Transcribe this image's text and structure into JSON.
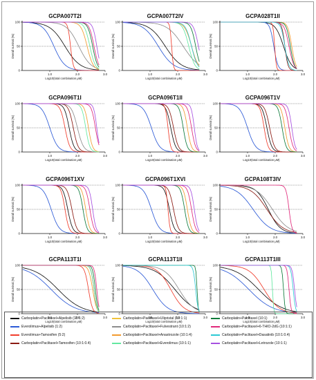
{
  "chart_data": {
    "type": "line",
    "xlabel": "Log10(total combination μM)",
    "ylabel": "Overall survival (%)",
    "xlim": [
      0,
      3
    ],
    "ylim": [
      0,
      100
    ],
    "x_ticks": [
      "1.0",
      "2.0",
      "3.0"
    ],
    "y_ticks": [
      "0",
      "50",
      "100"
    ],
    "reference_lines": [
      100,
      50
    ],
    "legend": {
      "placement": "bottom",
      "entries": [
        {
          "name": "Carboplatin+Paclitaxel+Alpelisib (10:1:2)",
          "color": "#111111"
        },
        {
          "name": "Everolimus+Alpelisib (1:2)",
          "color": "#2b59d6"
        },
        {
          "name": "Everolimus+Tamoxifen (5:2)",
          "color": "#f03c2b"
        },
        {
          "name": "Carboplatin+Paclitaxel+Tamoxifen (10:1:0.4)",
          "color": "#8b1a12"
        },
        {
          "name": "Carboplatin+Paclitaxel+Ulipristal (10:1:1)",
          "color": "#f0c23a"
        },
        {
          "name": "Carboplatin+Paclitaxel+Fulvestrant (10:1:2)",
          "color": "#8c8c8c"
        },
        {
          "name": "Carboplatin+Paclitaxel+Anastrozole (10:1:4)",
          "color": "#f29a2e"
        },
        {
          "name": "Carboplatin+Paclitaxel+Everolimus (10:1:1)",
          "color": "#62e8a0"
        },
        {
          "name": "Carboplatin+Paclitaxel (10:1)",
          "color": "#0c7a3a"
        },
        {
          "name": "Carboplatin+Paclitaxel+6-THIO-2dG (10:1:1)",
          "color": "#e0287a"
        },
        {
          "name": "Carboplatin+Paclitaxel+Dasatinib (10:1:0.4)",
          "color": "#2bc9d4"
        },
        {
          "name": "Carboplatin+Paclitaxel+Letrozole (10:1:1)",
          "color": "#a64fe0"
        }
      ]
    },
    "panels": [
      {
        "title": "GCPA007T2I",
        "series": [
          {
            "k": 0,
            "ic50": 1.55,
            "slope": 1.6
          },
          {
            "k": 1,
            "ic50": 1.15,
            "slope": 2.2
          },
          {
            "k": 2,
            "ic50": 1.75,
            "slope": 9.0
          },
          {
            "k": 5,
            "ic50": 2.05,
            "slope": 2.0
          },
          {
            "k": 6,
            "ic50": 2.35,
            "slope": 4.0
          },
          {
            "k": 7,
            "ic50": 2.45,
            "slope": 4.5
          },
          {
            "k": 8,
            "ic50": 2.55,
            "slope": 5.0
          },
          {
            "k": 9,
            "ic50": 2.6,
            "slope": 5.0
          },
          {
            "k": 11,
            "ic50": 2.7,
            "slope": 6.0
          }
        ]
      },
      {
        "title": "GCPA007T2IV",
        "series": [
          {
            "k": 0,
            "ic50": 1.55,
            "slope": 1.5
          },
          {
            "k": 1,
            "ic50": 1.3,
            "slope": 1.6
          },
          {
            "k": 2,
            "ic50": 1.78,
            "slope": 14.0
          },
          {
            "k": 5,
            "ic50": 2.2,
            "slope": 1.5
          },
          {
            "k": 6,
            "ic50": 2.5,
            "slope": 3.5
          },
          {
            "k": 7,
            "ic50": 2.4,
            "slope": 4.0
          },
          {
            "k": 8,
            "ic50": 2.65,
            "slope": 5.0
          },
          {
            "k": 10,
            "ic50": 2.5,
            "slope": 4.0
          },
          {
            "k": 11,
            "ic50": 2.75,
            "slope": 5.0
          }
        ]
      },
      {
        "title": "GCPA028T1II",
        "series": [
          {
            "k": 0,
            "ic50": 2.3,
            "slope": 3.0
          },
          {
            "k": 1,
            "ic50": 1.95,
            "slope": 6.0
          },
          {
            "k": 2,
            "ic50": 1.98,
            "slope": 15.0
          },
          {
            "k": 3,
            "ic50": 2.35,
            "slope": 8.0
          },
          {
            "k": 6,
            "ic50": 2.6,
            "slope": 6.0
          },
          {
            "k": 8,
            "ic50": 2.55,
            "slope": 6.0
          },
          {
            "k": 9,
            "ic50": 2.5,
            "slope": 5.0
          },
          {
            "k": 10,
            "ic50": 2.35,
            "slope": 6.0
          }
        ]
      },
      {
        "title": "GCPA096T1I",
        "series": [
          {
            "k": 0,
            "ic50": 1.7,
            "slope": 5.0
          },
          {
            "k": 1,
            "ic50": 1.0,
            "slope": 3.0
          },
          {
            "k": 2,
            "ic50": 1.55,
            "slope": 5.0
          },
          {
            "k": 3,
            "ic50": 1.85,
            "slope": 5.0
          },
          {
            "k": 5,
            "ic50": 2.0,
            "slope": 4.0
          },
          {
            "k": 6,
            "ic50": 2.4,
            "slope": 6.0
          },
          {
            "k": 7,
            "ic50": 2.3,
            "slope": 6.0
          },
          {
            "k": 9,
            "ic50": 2.65,
            "slope": 6.0
          },
          {
            "k": 11,
            "ic50": 2.7,
            "slope": 8.0
          }
        ]
      },
      {
        "title": "GCPA096T1II",
        "series": [
          {
            "k": 0,
            "ic50": 1.75,
            "slope": 5.0
          },
          {
            "k": 1,
            "ic50": 1.05,
            "slope": 3.0
          },
          {
            "k": 2,
            "ic50": 1.65,
            "slope": 9.0
          },
          {
            "k": 3,
            "ic50": 1.85,
            "slope": 5.0
          },
          {
            "k": 6,
            "ic50": 2.35,
            "slope": 6.0
          },
          {
            "k": 8,
            "ic50": 2.2,
            "slope": 6.0
          },
          {
            "k": 9,
            "ic50": 2.5,
            "slope": 6.0
          },
          {
            "k": 11,
            "ic50": 2.6,
            "slope": 8.0
          }
        ]
      },
      {
        "title": "GCPA096T1V",
        "series": [
          {
            "k": 0,
            "ic50": 1.7,
            "slope": 5.0
          },
          {
            "k": 1,
            "ic50": 1.0,
            "slope": 3.0
          },
          {
            "k": 2,
            "ic50": 1.6,
            "slope": 6.0
          },
          {
            "k": 3,
            "ic50": 1.8,
            "slope": 5.0
          },
          {
            "k": 6,
            "ic50": 2.35,
            "slope": 6.0
          },
          {
            "k": 8,
            "ic50": 2.25,
            "slope": 6.0
          },
          {
            "k": 9,
            "ic50": 2.5,
            "slope": 6.0
          },
          {
            "k": 11,
            "ic50": 2.6,
            "slope": 7.0
          }
        ]
      },
      {
        "title": "GCPA096T1XV",
        "series": [
          {
            "k": 0,
            "ic50": 1.65,
            "slope": 5.0
          },
          {
            "k": 1,
            "ic50": 1.05,
            "slope": 3.0
          },
          {
            "k": 2,
            "ic50": 1.55,
            "slope": 6.0
          },
          {
            "k": 3,
            "ic50": 1.8,
            "slope": 5.0
          },
          {
            "k": 6,
            "ic50": 2.3,
            "slope": 6.0
          },
          {
            "k": 8,
            "ic50": 2.2,
            "slope": 6.0
          },
          {
            "k": 9,
            "ic50": 2.45,
            "slope": 6.0
          },
          {
            "k": 11,
            "ic50": 2.55,
            "slope": 7.0
          }
        ]
      },
      {
        "title": "GCPA096T1XVI",
        "series": [
          {
            "k": 0,
            "ic50": 1.7,
            "slope": 5.0
          },
          {
            "k": 1,
            "ic50": 1.05,
            "slope": 3.0
          },
          {
            "k": 2,
            "ic50": 1.65,
            "slope": 12.0
          },
          {
            "k": 3,
            "ic50": 1.85,
            "slope": 5.0
          },
          {
            "k": 6,
            "ic50": 2.35,
            "slope": 6.0
          },
          {
            "k": 8,
            "ic50": 2.25,
            "slope": 6.0
          },
          {
            "k": 9,
            "ic50": 2.5,
            "slope": 6.0
          },
          {
            "k": 11,
            "ic50": 2.6,
            "slope": 7.0
          }
        ]
      },
      {
        "title": "GCPA108T3IV",
        "series": [
          {
            "k": 0,
            "ic50": 1.75,
            "slope": 2.0
          },
          {
            "k": 1,
            "ic50": 1.2,
            "slope": 1.4
          },
          {
            "k": 3,
            "ic50": 1.7,
            "slope": 1.5
          },
          {
            "k": 5,
            "ic50": 1.9,
            "slope": 1.5
          },
          {
            "k": 9,
            "ic50": 2.5,
            "slope": 8.0
          }
        ]
      },
      {
        "title": "GCPA113T1I",
        "series": [
          {
            "k": 0,
            "ic50": 1.3,
            "slope": 1.0
          },
          {
            "k": 1,
            "ic50": 1.05,
            "slope": 1.0
          },
          {
            "k": 2,
            "ic50": 2.4,
            "slope": 6.0
          },
          {
            "k": 3,
            "ic50": 2.6,
            "slope": 8.0
          },
          {
            "k": 6,
            "ic50": 2.55,
            "slope": 6.0
          },
          {
            "k": 7,
            "ic50": 2.6,
            "slope": 8.0
          },
          {
            "k": 8,
            "ic50": 2.65,
            "slope": 9.0
          },
          {
            "k": 9,
            "ic50": 2.7,
            "slope": 10.0
          }
        ]
      },
      {
        "title": "GCPA113T1II",
        "series": [
          {
            "k": 0,
            "ic50": 1.9,
            "slope": 1.2
          },
          {
            "k": 1,
            "ic50": 1.1,
            "slope": 1.6
          },
          {
            "k": 2,
            "ic50": 1.75,
            "slope": 1.8
          },
          {
            "k": 5,
            "ic50": 2.05,
            "slope": 1.6
          },
          {
            "k": 8,
            "ic50": 2.7,
            "slope": 20.0
          },
          {
            "k": 10,
            "ic50": 2.65,
            "slope": 10.0
          }
        ]
      },
      {
        "title": "GCPA113T1III",
        "series": [
          {
            "k": 0,
            "ic50": 1.4,
            "slope": 1.0
          },
          {
            "k": 1,
            "ic50": 1.05,
            "slope": 1.0
          },
          {
            "k": 2,
            "ic50": 1.6,
            "slope": 1.6
          },
          {
            "k": 7,
            "ic50": 1.9,
            "slope": 20.0
          },
          {
            "k": 8,
            "ic50": 2.3,
            "slope": 15.0
          },
          {
            "k": 9,
            "ic50": 2.5,
            "slope": 12.0
          },
          {
            "k": 10,
            "ic50": 2.65,
            "slope": 10.0
          },
          {
            "k": 11,
            "ic50": 2.7,
            "slope": 10.0
          }
        ]
      }
    ]
  }
}
